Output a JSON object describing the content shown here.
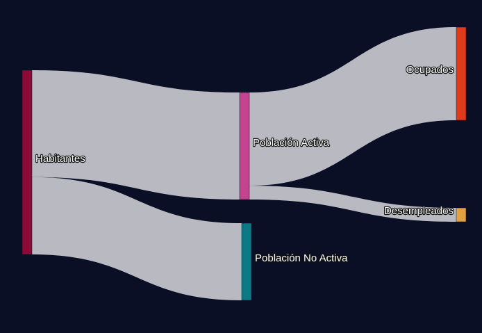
{
  "chart_data": {
    "type": "sankey",
    "nodes": [
      {
        "id": "habitantes",
        "label": "Habitantes",
        "color": "#8c0a35"
      },
      {
        "id": "activa",
        "label": "Población Activa",
        "color": "#c4438f"
      },
      {
        "id": "noactiva",
        "label": "Población No Activa",
        "color": "#0c7a84"
      },
      {
        "id": "ocupados",
        "label": "Ocupados",
        "color": "#e03a1a"
      },
      {
        "id": "desempleados",
        "label": "Desempleados",
        "color": "#e0a240"
      }
    ],
    "links": [
      {
        "source": "habitantes",
        "target": "activa",
        "value": 58
      },
      {
        "source": "habitantes",
        "target": "noactiva",
        "value": 42
      },
      {
        "source": "activa",
        "target": "ocupados",
        "value": 50.5
      },
      {
        "source": "activa",
        "target": "desempleados",
        "value": 7.5
      }
    ],
    "link_color": "#b9bac1",
    "background": "#0a0f26"
  }
}
